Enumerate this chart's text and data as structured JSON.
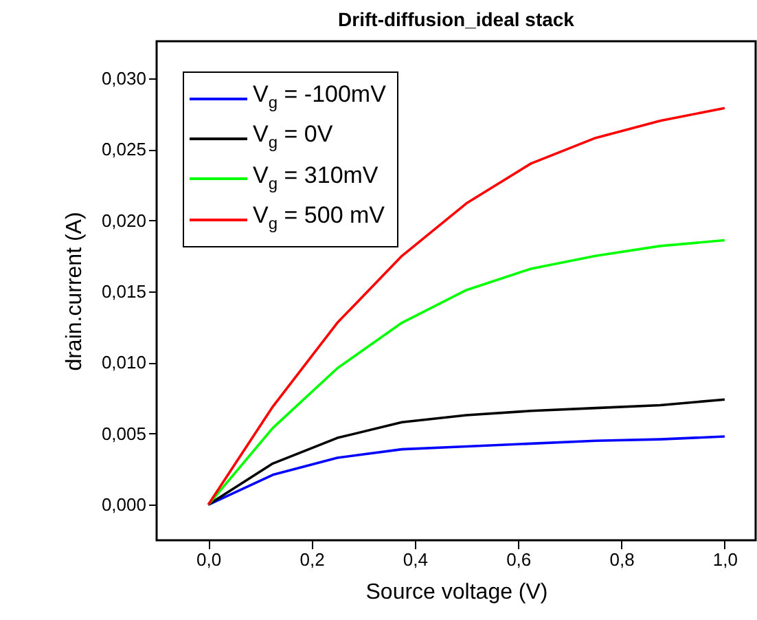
{
  "chart_data": {
    "type": "line",
    "title": "Drift-diffusion_ideal stack",
    "xlabel": "Source voltage (V)",
    "ylabel": "drain.current (A)",
    "x": [
      0,
      0.125,
      0.25,
      0.375,
      0.5,
      0.625,
      0.75,
      0.875,
      1.0
    ],
    "series": [
      {
        "name": "V$_{g}$ = -100mV",
        "color": "#0000ff",
        "values": [
          0,
          0.0021,
          0.0033,
          0.0039,
          0.0041,
          0.0043,
          0.0045,
          0.0046,
          0.0048
        ]
      },
      {
        "name": "V$_{g}$ = 0V",
        "color": "#000000",
        "values": [
          0,
          0.0029,
          0.0047,
          0.0058,
          0.0063,
          0.0066,
          0.0068,
          0.007,
          0.0074
        ]
      },
      {
        "name": "V$_{g}$ = 310mV",
        "color": "#00ff00",
        "values": [
          0,
          0.0054,
          0.0096,
          0.0128,
          0.0151,
          0.0166,
          0.0175,
          0.0182,
          0.0186
        ]
      },
      {
        "name": "V$_{g}$ = 500 mV",
        "color": "#ff0000",
        "values": [
          0,
          0.0069,
          0.0128,
          0.0175,
          0.0212,
          0.024,
          0.0258,
          0.027,
          0.0279
        ]
      }
    ],
    "xlim": [
      -0.1,
      1.06
    ],
    "ylim": [
      -0.0025,
      0.0326
    ],
    "xticks": [
      {
        "value": 0,
        "label": "0,0"
      },
      {
        "value": 0.2,
        "label": "0,2"
      },
      {
        "value": 0.4,
        "label": "0,4"
      },
      {
        "value": 0.6,
        "label": "0,6"
      },
      {
        "value": 0.8,
        "label": "0,8"
      },
      {
        "value": 1.0,
        "label": "1,0"
      }
    ],
    "yticks": [
      {
        "value": 0,
        "label": "0,000"
      },
      {
        "value": 0.005,
        "label": "0,005"
      },
      {
        "value": 0.01,
        "label": "0,010"
      },
      {
        "value": 0.015,
        "label": "0,015"
      },
      {
        "value": 0.02,
        "label": "0,020"
      },
      {
        "value": 0.025,
        "label": "0,025"
      },
      {
        "value": 0.03,
        "label": "0,030"
      }
    ],
    "grid": false,
    "legend": "top left",
    "marker": "none",
    "line_style": "solid"
  }
}
